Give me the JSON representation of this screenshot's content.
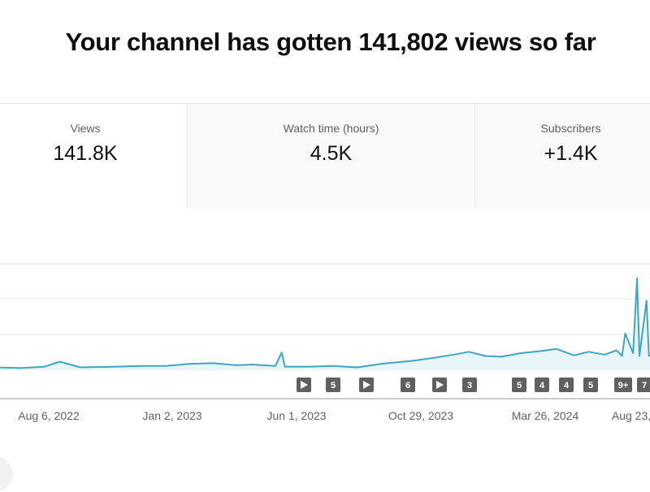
{
  "headline": "Your channel has gotten 141,802 views so far",
  "metrics": [
    {
      "label": "Views",
      "value": "141.8K"
    },
    {
      "label": "Watch time (hours)",
      "value": "4.5K"
    },
    {
      "label": "Subscribers",
      "value": "+1.4K"
    }
  ],
  "colors": {
    "line": "#3ea6c4",
    "fill": "#e8f5f9",
    "marker": "#606060",
    "grid": "#e5e5e5"
  },
  "timeline_markers": [
    {
      "kind": "video-icon"
    },
    {
      "kind": "count",
      "text": "5"
    },
    {
      "kind": "video-icon"
    },
    {
      "kind": "count",
      "text": "6"
    },
    {
      "kind": "video-icon"
    },
    {
      "kind": "count",
      "text": "3"
    },
    {
      "kind": "count",
      "text": "5"
    },
    {
      "kind": "count",
      "text": "4"
    },
    {
      "kind": "count",
      "text": "4"
    },
    {
      "kind": "count",
      "text": "5"
    },
    {
      "kind": "count",
      "text": "9+"
    },
    {
      "kind": "count",
      "text": "7"
    }
  ],
  "chart_data": {
    "type": "line",
    "x_ticks": [
      "Aug 6, 2022",
      "Jan 2, 2023",
      "Jun 1, 2023",
      "Oct 29, 2023",
      "Mar 26, 2024",
      "Aug 23,"
    ],
    "grid": true,
    "x": [
      "2022-06-01",
      "2022-07-01",
      "2022-08-01",
      "2022-08-20",
      "2022-09-15",
      "2022-11-01",
      "2022-12-01",
      "2023-01-01",
      "2023-02-01",
      "2023-03-01",
      "2023-04-01",
      "2023-04-20",
      "2023-05-20",
      "2023-05-28",
      "2023-06-01",
      "2023-07-01",
      "2023-08-01",
      "2023-09-01",
      "2023-10-01",
      "2023-10-29",
      "2023-11-15",
      "2023-12-10",
      "2024-01-01",
      "2024-01-20",
      "2024-02-10",
      "2024-03-01",
      "2024-03-26",
      "2024-04-20",
      "2024-05-10",
      "2024-06-01",
      "2024-06-20",
      "2024-07-10",
      "2024-07-25",
      "2024-08-01",
      "2024-08-05",
      "2024-08-15",
      "2024-08-20",
      "2024-08-23",
      "2024-09-01",
      "2024-09-04",
      "2024-09-08"
    ],
    "values": [
      4,
      3,
      5,
      12,
      4,
      5,
      6,
      6,
      9,
      10,
      7,
      8,
      6,
      25,
      5,
      5,
      6,
      4,
      9,
      12,
      14,
      18,
      22,
      26,
      20,
      19,
      24,
      27,
      30,
      21,
      26,
      22,
      28,
      20,
      52,
      24,
      130,
      20,
      98,
      20,
      22
    ]
  }
}
